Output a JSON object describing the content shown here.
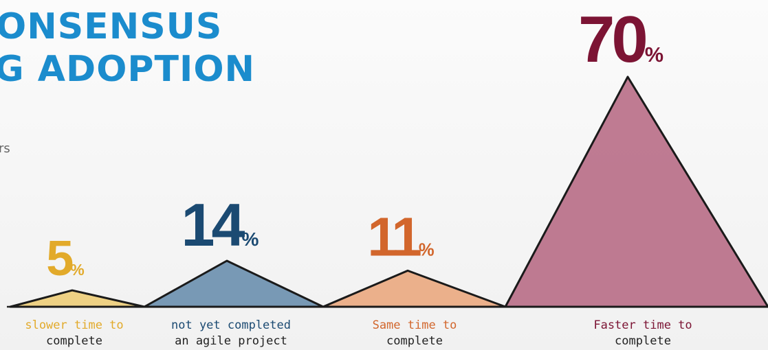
{
  "chart_data": {
    "type": "peak",
    "title_lines": [
      "ONSENSUS",
      "G ADOPTION"
    ],
    "side_text": "rs",
    "categories": [
      [
        "slower time to",
        "complete"
      ],
      [
        "not yet completed",
        "an agile project"
      ],
      [
        "Same time to",
        "complete"
      ],
      [
        "Faster time to",
        "complete"
      ]
    ],
    "values": [
      5,
      14,
      11,
      70
    ],
    "value_labels": [
      "5%",
      "14%",
      "11%",
      "70%"
    ],
    "colors": [
      "#edcd78",
      "#6a8fae",
      "#eaa87f",
      "#b86d86"
    ],
    "label_colors": [
      "#e2aa2a",
      "#1b4a72",
      "#d2662c",
      "#7c1434"
    ]
  }
}
